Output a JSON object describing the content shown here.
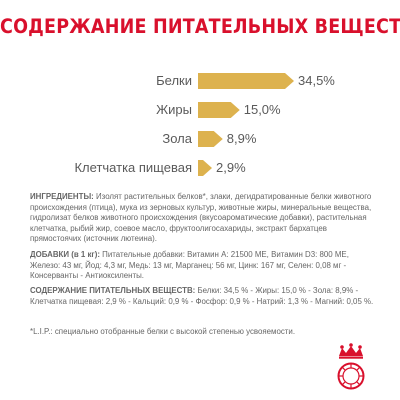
{
  "title": "СОДЕРЖАНИЕ ПИТАТЕЛЬНЫХ ВЕЩЕСТВ",
  "chart_data": {
    "type": "bar",
    "categories": [
      "Белки",
      "Жиры",
      "Зола",
      "Клетчатка пищевая"
    ],
    "values": [
      34.5,
      15.0,
      8.9,
      2.9
    ],
    "value_labels": [
      "34,5%",
      "15,0%",
      "8,9%",
      "2,9%"
    ],
    "unit": "%",
    "bar_color": "#ddb24e"
  },
  "ingredients": {
    "heading": "ИНГРЕДИЕНТЫ:",
    "text": " Изолят растительных белков*, злаки, дегидратированные белки животного происхождения (птица), мука из зерновых культур, животные жиры, минеральные вещества, гидролизат белков животного происхождения (вкусоароматические добавки), растительная клетчатка, рыбий жир, соевое масло, фруктоолигосахариды, экстракт бархатцев прямостоячих (источник лютеина)."
  },
  "additives": {
    "heading": "ДОБАВКИ (в 1 кг):",
    "text": " Питательные добавки: Витамин А: 21500 МЕ, Витамин D3: 800 МЕ, Железо: 43 мг, Йод: 4,3 мг, Медь: 13 мг, Марганец: 56 мг, Цинк: 167 мг, Селен: 0,08 мг - Консерванты - Антиоксиленты."
  },
  "nutrients": {
    "heading": "СОДЕРЖАНИЕ ПИТАТЕЛЬНЫХ ВЕЩЕСТВ:",
    "text": " Белки: 34,5 % - Жиры: 15,0 % - Зола: 8,9% - Клетчатка пищевая: 2,9 % - Кальций: 0,9 % - Фосфор: 0,9 % - Натрий: 1,3 % - Магний: 0,05 %."
  },
  "footnote": "*L.I.P.: специально отобранные белки с высокой степенью усвояемости.",
  "colors": {
    "title": "#d9102c",
    "bar": "#ddb24e",
    "logo": "#d9102c"
  },
  "logo_icon": "royal-canin-crown-logo"
}
